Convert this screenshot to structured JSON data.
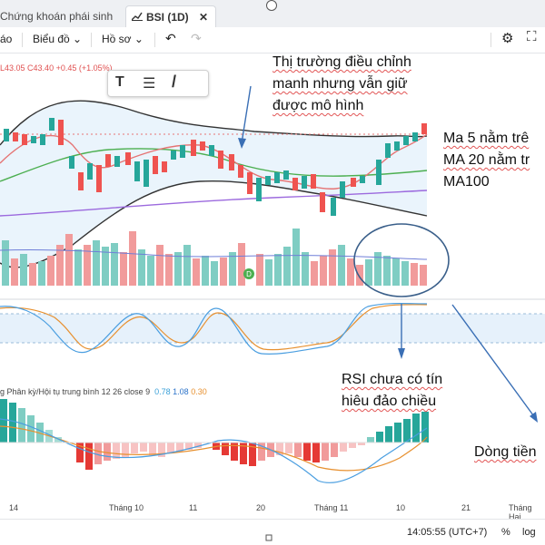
{
  "tabs": {
    "tab1": "Chứng khoán phái sinh",
    "tab2": "BSI (1D)",
    "close": "✕"
  },
  "toolbar": {
    "item1": "áo",
    "item2": "Biểu đồ",
    "item3": "Hồ sơ",
    "undo": "↶",
    "redo": "↷",
    "gear": "⚙",
    "chevron": "⌄"
  },
  "ohlc": {
    "l": "L43.05",
    "c": "C43.40",
    "chg": "+0.45 (+1.05%)"
  },
  "drawing": {
    "t": "T",
    "lines": "☰",
    "pen": "/"
  },
  "annotations": {
    "a1": "Thị trường điều chỉnh",
    "a2": "manh nhưng vẫn giữ",
    "a3": "được mô hình",
    "b1": "Ma 5 nằm trê",
    "b2": "MA 20 nằm tr",
    "b3": "MA100",
    "c1": "RSI chưa có tín",
    "c2": "hiêu đảo chiều",
    "d1": "Dòng tiền"
  },
  "macd": {
    "label": "g Phân kỳ/Hội tụ trung bình 12 26 close 9",
    "v1": "0.78",
    "v2": "1.08",
    "v3": "0.30"
  },
  "axis": [
    "14",
    "Tháng 10",
    "11",
    "20",
    "Tháng 11",
    "10",
    "21",
    "Tháng Hai"
  ],
  "footer": {
    "time": "14:05:55 (UTC+7)",
    "pct": "%",
    "log": "log"
  },
  "colors": {
    "up": "#26a69a",
    "down": "#ef5350",
    "band": "#333333",
    "ma5": "#e57373",
    "ma20": "#4caf50",
    "ma100": "#9c6ade",
    "annot_arrow": "#3a6fb5"
  }
}
